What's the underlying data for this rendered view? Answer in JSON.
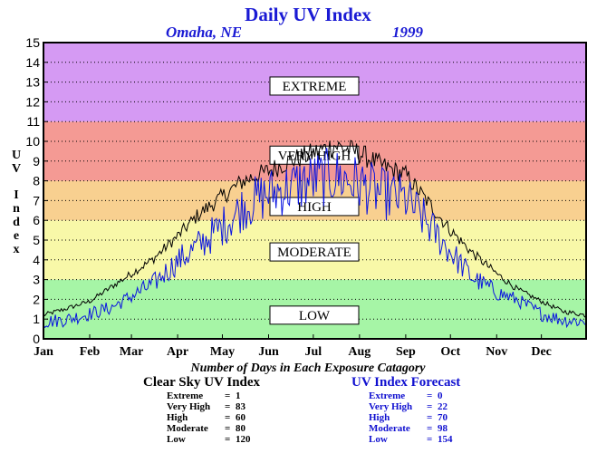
{
  "chart_data": {
    "type": "line",
    "title": "Daily UV Index",
    "location": "Omaha, NE",
    "year": "1999",
    "ylabel": "UV Index",
    "ylim": [
      0,
      15
    ],
    "yticks": [
      "0",
      "1",
      "2",
      "3",
      "4",
      "5",
      "6",
      "7",
      "8",
      "9",
      "10",
      "11",
      "12",
      "13",
      "14",
      "15"
    ],
    "months": [
      "Jan",
      "Feb",
      "Mar",
      "Apr",
      "May",
      "Jun",
      "Jul",
      "Aug",
      "Sep",
      "Oct",
      "Nov",
      "Dec"
    ],
    "bands": [
      {
        "label": "LOW",
        "from": 0,
        "to": 3,
        "color": "#a6f5a6"
      },
      {
        "label": "MODERATE",
        "from": 3,
        "to": 6,
        "color": "#f8f8a8"
      },
      {
        "label": "HIGH",
        "from": 6,
        "to": 8,
        "color": "#f8d090"
      },
      {
        "label": "VERY HIGH",
        "from": 8,
        "to": 11,
        "color": "#f49a94"
      },
      {
        "label": "EXTREME",
        "from": 11,
        "to": 15,
        "color": "#d59af3"
      }
    ],
    "grid": true,
    "series": [
      {
        "name": "Clear Sky UV Index",
        "color": "#000000",
        "monthly": [
          [
            1,
            1.2
          ],
          [
            15,
            1.5
          ],
          [
            32,
            1.9
          ],
          [
            46,
            2.6
          ],
          [
            60,
            3.3
          ],
          [
            74,
            4.0
          ],
          [
            91,
            5.2
          ],
          [
            105,
            6.3
          ],
          [
            121,
            7.2
          ],
          [
            135,
            8.0
          ],
          [
            152,
            8.5
          ],
          [
            166,
            9.0
          ],
          [
            182,
            9.4
          ],
          [
            196,
            9.8
          ],
          [
            213,
            9.4
          ],
          [
            227,
            8.8
          ],
          [
            244,
            8.3
          ],
          [
            258,
            7.0
          ],
          [
            274,
            5.5
          ],
          [
            288,
            4.4
          ],
          [
            305,
            3.3
          ],
          [
            319,
            2.5
          ],
          [
            335,
            1.9
          ],
          [
            349,
            1.4
          ],
          [
            365,
            1.2
          ]
        ]
      },
      {
        "name": "UV Index Forecast",
        "color": "#0a14e0",
        "monthly": [
          [
            1,
            0.9
          ],
          [
            15,
            1.0
          ],
          [
            32,
            1.3
          ],
          [
            46,
            1.6
          ],
          [
            60,
            2.2
          ],
          [
            74,
            2.8
          ],
          [
            91,
            4.0
          ],
          [
            105,
            4.8
          ],
          [
            121,
            5.8
          ],
          [
            135,
            6.8
          ],
          [
            152,
            7.5
          ],
          [
            166,
            7.8
          ],
          [
            182,
            8.2
          ],
          [
            196,
            8.4
          ],
          [
            213,
            8.0
          ],
          [
            227,
            7.5
          ],
          [
            244,
            7.2
          ],
          [
            258,
            6.0
          ],
          [
            274,
            4.5
          ],
          [
            288,
            3.2
          ],
          [
            305,
            2.4
          ],
          [
            319,
            2.0
          ],
          [
            335,
            1.3
          ],
          [
            349,
            1.0
          ],
          [
            365,
            0.9
          ]
        ]
      }
    ]
  },
  "stats": {
    "caption": "Number of Days in Each Exposure Catagory",
    "clear_sky": {
      "title": "Clear Sky UV Index",
      "rows": [
        {
          "name": "Extreme",
          "value": "1"
        },
        {
          "name": "Very High",
          "value": "83"
        },
        {
          "name": "High",
          "value": "60"
        },
        {
          "name": "Moderate",
          "value": "80"
        },
        {
          "name": "Low",
          "value": "120"
        }
      ]
    },
    "forecast": {
      "title": "UV Index Forecast",
      "rows": [
        {
          "name": "Extreme",
          "value": "0"
        },
        {
          "name": "Very High",
          "value": "22"
        },
        {
          "name": "High",
          "value": "70"
        },
        {
          "name": "Moderate",
          "value": "98"
        },
        {
          "name": "Low",
          "value": "154"
        }
      ]
    }
  }
}
